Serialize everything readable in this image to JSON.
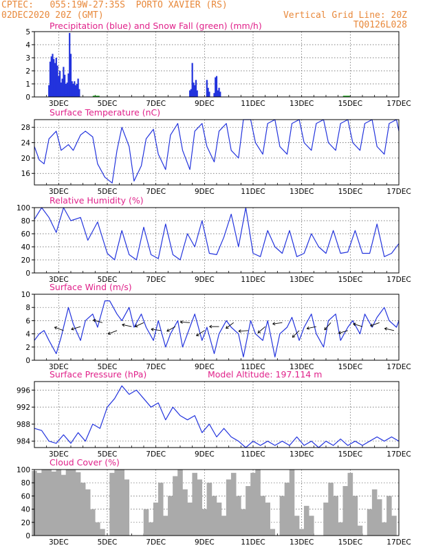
{
  "header": {
    "line1_left": "CPTEC:   055:19W-27:35S  PORTO XAVIER (RS)",
    "line2_left": "02DEC2020 20Z (GMT)",
    "line2_right": "Vertical Grid Line: 20Z",
    "line3_right": "TQ0126L028"
  },
  "colors": {
    "header": "#e8883a",
    "title": "#e0218a",
    "line": "#2233dd",
    "snow": "#22aa22",
    "cloud": "#aaaaaa",
    "axis": "#000000"
  },
  "x_ticks": [
    "3DEC",
    "5DEC",
    "7DEC",
    "9DEC",
    "11DEC",
    "13DEC",
    "15DEC",
    "17DEC"
  ],
  "chart_data": [
    {
      "type": "bar",
      "title": "Precipitation (blue) and Snow Fall (green) (mm/h)",
      "ylim": [
        0,
        5
      ],
      "yticks": [
        0,
        1,
        2,
        3,
        4,
        5
      ],
      "x_range_days": [
        2.0,
        17.0
      ],
      "series": [
        {
          "x": [
            2.6,
            2.65,
            2.7,
            2.75,
            2.8,
            2.85,
            2.9,
            2.95,
            3.0,
            3.05,
            3.1,
            3.15,
            3.2,
            3.25,
            3.3,
            3.35,
            3.4,
            3.45,
            3.5,
            3.55,
            3.6,
            3.65,
            3.7,
            3.75,
            3.8,
            3.85,
            8.4,
            8.45,
            8.5,
            8.55,
            8.6,
            8.65,
            8.7,
            9.1,
            9.15,
            9.2,
            9.4,
            9.45,
            9.5,
            9.55,
            9.6,
            9.65
          ],
          "values": [
            0.9,
            2.7,
            3.1,
            3.3,
            2.9,
            2.6,
            3.0,
            2.4,
            1.6,
            2.0,
            1.1,
            1.4,
            2.3,
            1.7,
            1.0,
            1.1,
            1.8,
            4.9,
            3.3,
            1.2,
            1.0,
            1.2,
            0.9,
            1.0,
            1.4,
            0.6,
            0.5,
            0.6,
            2.6,
            1.1,
            0.9,
            1.3,
            0.5,
            1.3,
            0.7,
            0.4,
            0.3,
            1.5,
            1.6,
            0.5,
            0.7,
            0.4
          ]
        }
      ]
    },
    {
      "type": "line",
      "title": "Surface Temperature (nC)",
      "ylim": [
        13,
        30
      ],
      "yticks": [
        16,
        20,
        24,
        28
      ],
      "x": [
        2.0,
        2.2,
        2.4,
        2.6,
        2.9,
        3.1,
        3.4,
        3.6,
        3.9,
        4.1,
        4.4,
        4.6,
        4.9,
        5.2,
        5.4,
        5.6,
        5.9,
        6.1,
        6.4,
        6.6,
        6.9,
        7.1,
        7.4,
        7.6,
        7.9,
        8.1,
        8.4,
        8.6,
        8.9,
        9.1,
        9.4,
        9.6,
        9.9,
        10.1,
        10.4,
        10.6,
        10.9,
        11.1,
        11.4,
        11.6,
        11.9,
        12.1,
        12.4,
        12.6,
        12.9,
        13.1,
        13.4,
        13.6,
        13.9,
        14.1,
        14.4,
        14.6,
        14.9,
        15.1,
        15.4,
        15.6,
        15.9,
        16.1,
        16.4,
        16.6,
        16.9,
        17.0
      ],
      "values": [
        23,
        19.5,
        18.5,
        25,
        27,
        22,
        23.5,
        22,
        26,
        27,
        25.5,
        18.5,
        15,
        13.5,
        22,
        28,
        23,
        14,
        18,
        25,
        27.5,
        21,
        17,
        26,
        29,
        22,
        17,
        27,
        29,
        23,
        19,
        27,
        29,
        22,
        20,
        30,
        30,
        24,
        21,
        29,
        30,
        23,
        21,
        29,
        30,
        24,
        22,
        29,
        30,
        24,
        22,
        29,
        30,
        24,
        22,
        29,
        30,
        23,
        21,
        29,
        30,
        27
      ]
    },
    {
      "type": "line",
      "title": "Relative Humidity (%)",
      "ylim": [
        0,
        100
      ],
      "yticks": [
        0,
        20,
        40,
        60,
        80,
        100
      ],
      "x": [
        2.0,
        2.3,
        2.6,
        2.9,
        3.2,
        3.5,
        3.9,
        4.2,
        4.6,
        5.0,
        5.3,
        5.6,
        5.9,
        6.2,
        6.5,
        6.8,
        7.1,
        7.4,
        7.7,
        8.0,
        8.3,
        8.6,
        8.9,
        9.2,
        9.5,
        9.8,
        10.1,
        10.4,
        10.7,
        11.0,
        11.3,
        11.6,
        11.9,
        12.2,
        12.5,
        12.8,
        13.1,
        13.4,
        13.7,
        14.0,
        14.3,
        14.6,
        14.9,
        15.2,
        15.5,
        15.8,
        16.1,
        16.4,
        16.7,
        17.0
      ],
      "values": [
        82,
        100,
        85,
        62,
        100,
        80,
        85,
        50,
        78,
        30,
        20,
        65,
        28,
        20,
        70,
        28,
        22,
        75,
        28,
        20,
        60,
        40,
        80,
        30,
        28,
        55,
        90,
        40,
        100,
        30,
        25,
        65,
        40,
        30,
        65,
        25,
        30,
        60,
        40,
        30,
        65,
        30,
        32,
        65,
        30,
        30,
        75,
        25,
        30,
        45
      ]
    },
    {
      "type": "line",
      "title": "Surface Wind (m/s)",
      "ylim": [
        0,
        10
      ],
      "yticks": [
        0,
        2,
        4,
        6,
        8,
        10
      ],
      "x": [
        2.0,
        2.2,
        2.4,
        2.6,
        2.9,
        3.1,
        3.4,
        3.6,
        3.9,
        4.1,
        4.4,
        4.6,
        4.9,
        5.1,
        5.4,
        5.6,
        5.9,
        6.1,
        6.4,
        6.6,
        6.9,
        7.1,
        7.4,
        7.6,
        7.9,
        8.1,
        8.4,
        8.6,
        8.9,
        9.1,
        9.4,
        9.6,
        9.9,
        10.1,
        10.4,
        10.6,
        10.9,
        11.1,
        11.4,
        11.6,
        11.9,
        12.1,
        12.4,
        12.6,
        12.9,
        13.1,
        13.4,
        13.6,
        13.9,
        14.1,
        14.4,
        14.6,
        14.9,
        15.1,
        15.4,
        15.6,
        15.9,
        16.1,
        16.4,
        16.6,
        16.9,
        17.0
      ],
      "values": [
        3,
        4,
        4.5,
        3,
        1,
        3.5,
        8,
        5.5,
        3,
        6,
        7,
        5,
        9,
        9,
        7,
        6,
        8,
        5,
        7,
        5,
        3,
        6,
        2,
        4,
        6,
        2,
        5,
        7,
        3,
        5,
        1,
        4,
        6,
        5,
        4,
        0.5,
        6,
        4,
        3,
        6,
        0.5,
        4,
        5,
        6.5,
        3,
        5,
        7,
        4,
        2,
        6,
        7,
        3,
        5,
        6,
        4,
        7,
        5,
        6.5,
        8,
        6,
        5,
        6
      ]
    },
    {
      "type": "line",
      "title": "Surface Pressure (hPa)",
      "subtitle": "Model Altitude: 197.114 m",
      "ylim": [
        982.5,
        998
      ],
      "yticks": [
        984,
        988,
        992,
        996
      ],
      "x": [
        2.0,
        2.3,
        2.6,
        2.9,
        3.2,
        3.5,
        3.8,
        4.1,
        4.4,
        4.7,
        5.0,
        5.3,
        5.6,
        5.9,
        6.2,
        6.5,
        6.8,
        7.1,
        7.4,
        7.7,
        8.0,
        8.3,
        8.6,
        8.9,
        9.2,
        9.5,
        9.8,
        10.1,
        10.4,
        10.7,
        11.0,
        11.3,
        11.6,
        11.9,
        12.2,
        12.5,
        12.8,
        13.1,
        13.4,
        13.7,
        14.0,
        14.3,
        14.6,
        14.9,
        15.2,
        15.5,
        15.8,
        16.1,
        16.4,
        16.7,
        17.0
      ],
      "values": [
        987,
        986.5,
        984,
        983.5,
        985.5,
        983.5,
        986,
        984,
        988,
        987,
        992,
        994,
        997,
        995,
        996,
        994,
        992,
        993,
        989,
        992,
        990,
        989,
        990,
        986,
        988,
        985,
        987,
        985,
        984,
        982.5,
        984,
        983,
        984,
        983,
        984,
        983,
        985,
        983,
        984,
        982.5,
        984,
        983,
        984.5,
        983,
        984,
        983,
        984,
        985,
        984,
        985,
        984
      ]
    },
    {
      "type": "bar",
      "title": "Cloud Cover (%)",
      "ylim": [
        0,
        100
      ],
      "yticks": [
        0,
        20,
        40,
        60,
        80,
        100
      ],
      "x": [
        2.0,
        2.2,
        2.4,
        2.6,
        2.8,
        3.0,
        3.2,
        3.4,
        3.6,
        3.8,
        4.0,
        4.2,
        4.4,
        4.6,
        4.8,
        5.0,
        5.2,
        5.4,
        5.6,
        5.8,
        6.0,
        6.2,
        6.4,
        6.6,
        6.8,
        7.0,
        7.2,
        7.4,
        7.6,
        7.8,
        8.0,
        8.2,
        8.4,
        8.6,
        8.8,
        9.0,
        9.2,
        9.4,
        9.6,
        9.8,
        10.0,
        10.2,
        10.4,
        10.6,
        10.8,
        11.0,
        11.2,
        11.4,
        11.6,
        11.8,
        12.0,
        12.2,
        12.4,
        12.6,
        12.8,
        13.0,
        13.2,
        13.4,
        13.6,
        13.8,
        14.0,
        14.2,
        14.4,
        14.6,
        14.8,
        15.0,
        15.2,
        15.4,
        15.6,
        15.8,
        16.0,
        16.2,
        16.4,
        16.6,
        16.8,
        17.0
      ],
      "values": [
        98,
        95,
        100,
        100,
        97,
        100,
        92,
        100,
        100,
        96,
        80,
        70,
        40,
        20,
        10,
        0,
        95,
        100,
        100,
        85,
        0,
        0,
        0,
        40,
        20,
        50,
        80,
        30,
        60,
        90,
        100,
        70,
        50,
        95,
        85,
        40,
        80,
        60,
        50,
        30,
        85,
        95,
        60,
        40,
        75,
        95,
        100,
        60,
        50,
        10,
        0,
        60,
        80,
        100,
        30,
        10,
        45,
        30,
        0,
        0,
        50,
        80,
        60,
        20,
        75,
        95,
        60,
        15,
        0,
        40,
        70,
        55,
        20,
        60,
        30,
        0
      ]
    }
  ]
}
